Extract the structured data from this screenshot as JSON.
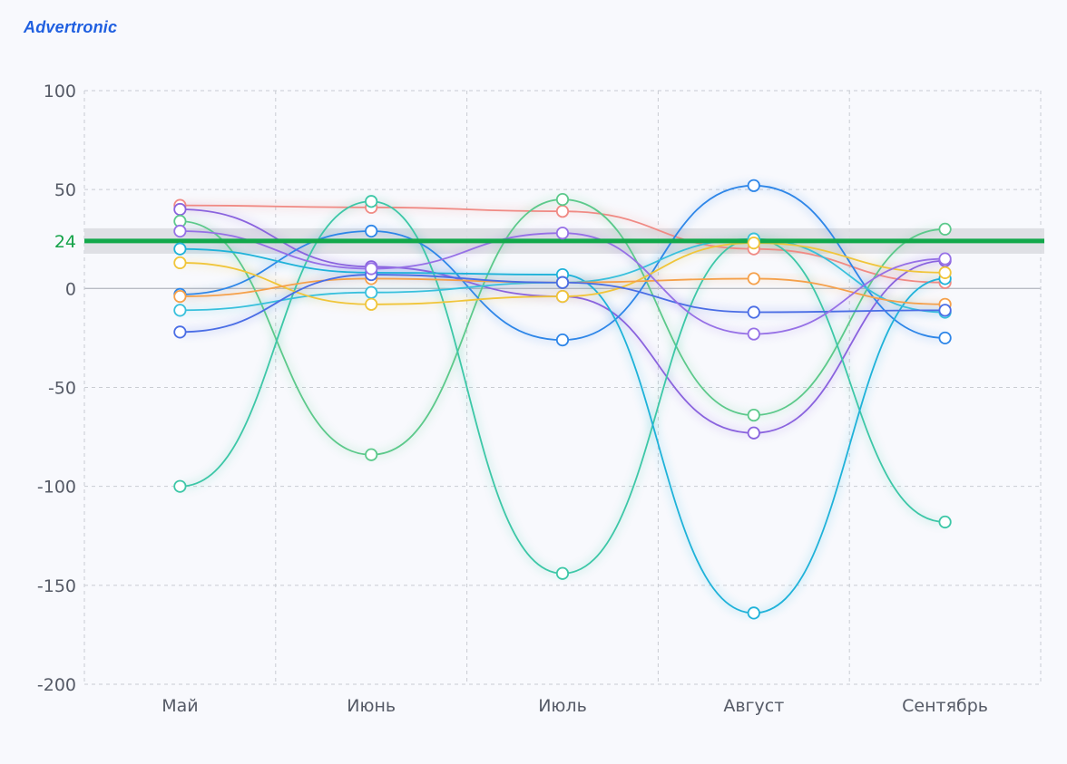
{
  "brand": {
    "name": "Advertronic",
    "color": "#1f5fe0"
  },
  "chart_data": {
    "type": "line",
    "smooth": true,
    "categories": [
      "Май",
      "Июнь",
      "Июль",
      "Август",
      "Сентябрь"
    ],
    "ylim": [
      -200,
      100
    ],
    "yticks": [
      100,
      50,
      0,
      -50,
      -100,
      -150,
      -200
    ],
    "grid": true,
    "legend": "none",
    "reference_line": {
      "value": 24,
      "label": "24",
      "color": "#12a84b",
      "band_color": "#dcdde2"
    },
    "series": [
      {
        "color": "#f08a84",
        "values": [
          42,
          41,
          39,
          20,
          3
        ]
      },
      {
        "color": "#8a63de",
        "values": [
          40,
          11,
          -4,
          -73,
          14
        ]
      },
      {
        "color": "#5cc98b",
        "values": [
          34,
          -84,
          45,
          -64,
          30
        ]
      },
      {
        "color": "#3dc7a7",
        "values": [
          -100,
          44,
          -144,
          25,
          -118
        ]
      },
      {
        "color": "#2e86e8",
        "values": [
          -3,
          29,
          -26,
          52,
          -25
        ]
      },
      {
        "color": "#1fb2d9",
        "values": [
          20,
          8,
          7,
          -164,
          5
        ]
      },
      {
        "color": "#38c0dc",
        "values": [
          -11,
          -2,
          3,
          25,
          -12
        ]
      },
      {
        "color": "#f0c53a",
        "values": [
          13,
          -8,
          -4,
          23,
          8
        ]
      },
      {
        "color": "#f5a04a",
        "values": [
          -4,
          5,
          3,
          5,
          -8
        ]
      },
      {
        "color": "#4a6de5",
        "values": [
          -22,
          7,
          3,
          -12,
          -11
        ]
      },
      {
        "color": "#9670e6",
        "values": [
          29,
          10,
          28,
          -23,
          15
        ]
      }
    ]
  }
}
